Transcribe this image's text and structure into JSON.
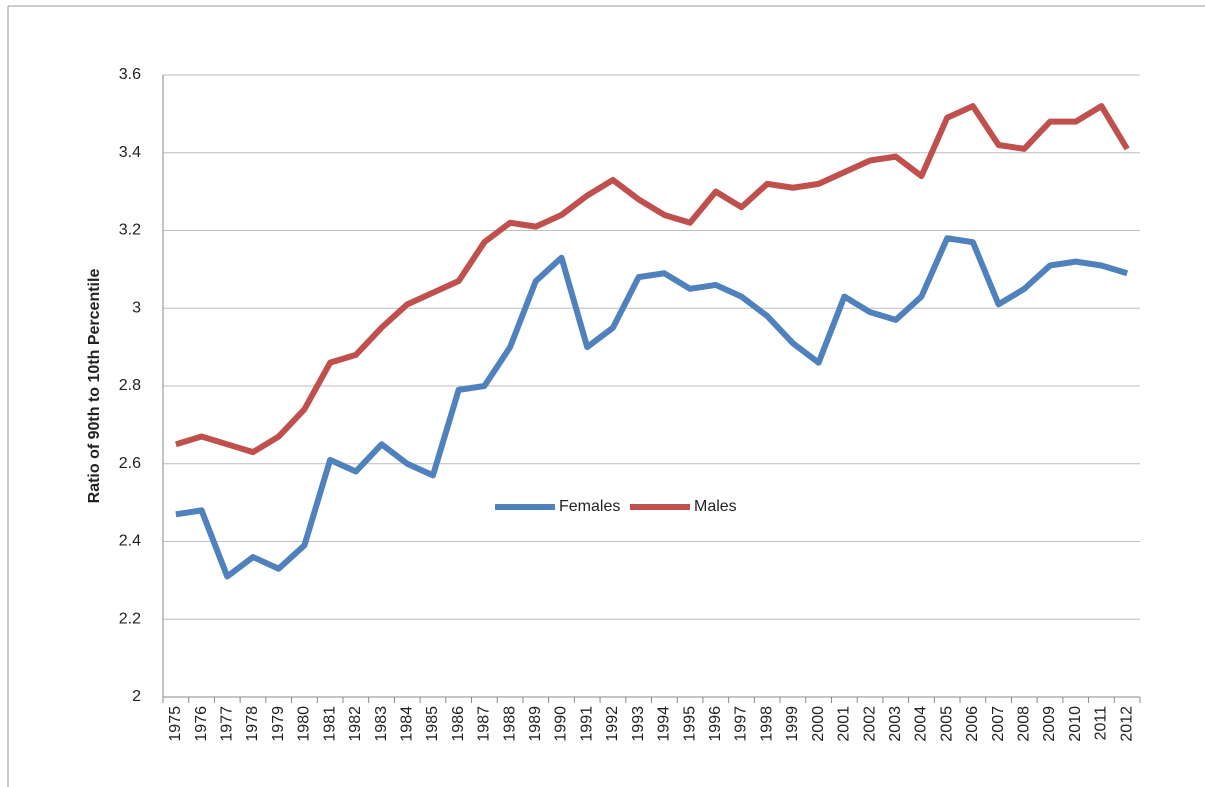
{
  "chart_data": {
    "type": "line",
    "y_label": "Ratio of 90th to 10th Percentile",
    "categories": [
      "1975",
      "1976",
      "1977",
      "1978",
      "1979",
      "1980",
      "1981",
      "1982",
      "1983",
      "1984",
      "1985",
      "1986",
      "1987",
      "1988",
      "1989",
      "1990",
      "1991",
      "1992",
      "1993",
      "1994",
      "1995",
      "1996",
      "1997",
      "1998",
      "1999",
      "2000",
      "2001",
      "2002",
      "2003",
      "2004",
      "2005",
      "2006",
      "2007",
      "2008",
      "2009",
      "2010",
      "2011",
      "2012"
    ],
    "series": [
      {
        "name": "Females",
        "color": "#4f81bd",
        "values": [
          2.47,
          2.48,
          2.31,
          2.36,
          2.33,
          2.39,
          2.61,
          2.58,
          2.65,
          2.6,
          2.57,
          2.79,
          2.8,
          2.9,
          3.07,
          3.13,
          2.9,
          2.95,
          3.08,
          3.09,
          3.05,
          3.06,
          3.03,
          2.98,
          2.91,
          2.86,
          3.03,
          2.99,
          2.97,
          3.03,
          3.18,
          3.17,
          3.01,
          3.05,
          3.11,
          3.12,
          3.11,
          3.09
        ]
      },
      {
        "name": "Males",
        "color": "#c0504d",
        "values": [
          2.65,
          2.67,
          2.65,
          2.63,
          2.67,
          2.74,
          2.86,
          2.88,
          2.95,
          3.01,
          3.04,
          3.07,
          3.17,
          3.22,
          3.21,
          3.24,
          3.29,
          3.33,
          3.28,
          3.24,
          3.22,
          3.3,
          3.26,
          3.32,
          3.31,
          3.32,
          3.35,
          3.38,
          3.39,
          3.34,
          3.49,
          3.52,
          3.42,
          3.41,
          3.48,
          3.48,
          3.52,
          3.41
        ]
      }
    ],
    "ylim": [
      2,
      3.6
    ],
    "yticks": [
      2,
      2.2,
      2.4,
      2.6,
      2.8,
      3,
      3.2,
      3.4,
      3.6
    ],
    "grid": true
  }
}
